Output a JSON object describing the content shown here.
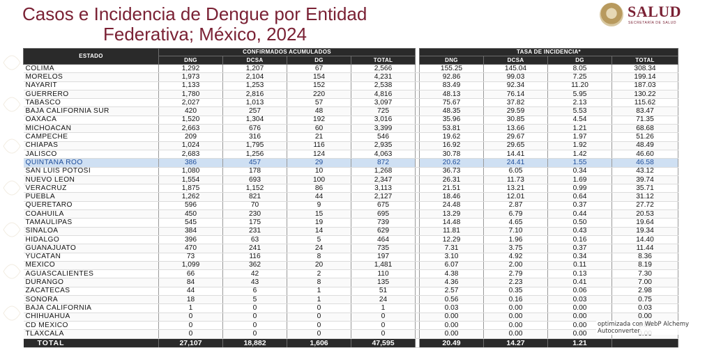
{
  "title_line1": "Casos e Incidencia de Dengue por Entidad",
  "title_line2": "Federativa; México, 2024",
  "logo": {
    "brand": "SALUD",
    "subtitle": "SECRETARÍA DE SALUD",
    "seal_icon": "mexican-coat-of-arms-seal"
  },
  "colors": {
    "title": "#7a2134",
    "header_bg": "#2a2a2a",
    "highlight": "#cfe0f3",
    "highlight_text": "#1f4e9b"
  },
  "table": {
    "estado_header": "ESTADO",
    "group_confirmados": "CONFIRMADOS ACUMULADOS",
    "group_tasa": "TASA DE INCIDENCIA*",
    "columns_confirmados": [
      "DNG",
      "DCSA",
      "DG",
      "TOTAL"
    ],
    "columns_tasa": [
      "DNG",
      "DCSA",
      "DG",
      "TOTAL"
    ],
    "highlighted_state": "QUINTANA ROO",
    "rows": [
      {
        "estado": "COLIMA",
        "c": [
          "1,292",
          "1,207",
          "67",
          "2,566"
        ],
        "t": [
          "155.25",
          "145.04",
          "8.05",
          "308.34"
        ]
      },
      {
        "estado": "MORELOS",
        "c": [
          "1,973",
          "2,104",
          "154",
          "4,231"
        ],
        "t": [
          "92.86",
          "99.03",
          "7.25",
          "199.14"
        ]
      },
      {
        "estado": "NAYARIT",
        "c": [
          "1,133",
          "1,253",
          "152",
          "2,538"
        ],
        "t": [
          "83.49",
          "92.34",
          "11.20",
          "187.03"
        ]
      },
      {
        "estado": "GUERRERO",
        "c": [
          "1,780",
          "2,816",
          "220",
          "4,816"
        ],
        "t": [
          "48.13",
          "76.14",
          "5.95",
          "130.22"
        ]
      },
      {
        "estado": "TABASCO",
        "c": [
          "2,027",
          "1,013",
          "57",
          "3,097"
        ],
        "t": [
          "75.67",
          "37.82",
          "2.13",
          "115.62"
        ]
      },
      {
        "estado": "BAJA CALIFORNIA SUR",
        "c": [
          "420",
          "257",
          "48",
          "725"
        ],
        "t": [
          "48.35",
          "29.59",
          "5.53",
          "83.47"
        ]
      },
      {
        "estado": "OAXACA",
        "c": [
          "1,520",
          "1,304",
          "192",
          "3,016"
        ],
        "t": [
          "35.96",
          "30.85",
          "4.54",
          "71.35"
        ]
      },
      {
        "estado": "MICHOACÁN",
        "c": [
          "2,663",
          "676",
          "60",
          "3,399"
        ],
        "t": [
          "53.81",
          "13.66",
          "1.21",
          "68.68"
        ]
      },
      {
        "estado": "CAMPECHE",
        "c": [
          "209",
          "316",
          "21",
          "546"
        ],
        "t": [
          "19.62",
          "29.67",
          "1.97",
          "51.26"
        ]
      },
      {
        "estado": "CHIAPAS",
        "c": [
          "1,024",
          "1,795",
          "116",
          "2,935"
        ],
        "t": [
          "16.92",
          "29.65",
          "1.92",
          "48.49"
        ]
      },
      {
        "estado": "JALISCO",
        "c": [
          "2,683",
          "1,256",
          "124",
          "4,063"
        ],
        "t": [
          "30.78",
          "14.41",
          "1.42",
          "46.60"
        ]
      },
      {
        "estado": "QUINTANA ROO",
        "c": [
          "386",
          "457",
          "29",
          "872"
        ],
        "t": [
          "20.62",
          "24.41",
          "1.55",
          "46.58"
        ]
      },
      {
        "estado": "SAN LUIS POTOSÍ",
        "c": [
          "1,080",
          "178",
          "10",
          "1,268"
        ],
        "t": [
          "36.73",
          "6.05",
          "0.34",
          "43.12"
        ]
      },
      {
        "estado": "NUEVO LEÓN",
        "c": [
          "1,554",
          "693",
          "100",
          "2,347"
        ],
        "t": [
          "26.31",
          "11.73",
          "1.69",
          "39.74"
        ]
      },
      {
        "estado": "VERACRUZ",
        "c": [
          "1,875",
          "1,152",
          "86",
          "3,113"
        ],
        "t": [
          "21.51",
          "13.21",
          "0.99",
          "35.71"
        ]
      },
      {
        "estado": "PUEBLA",
        "c": [
          "1,262",
          "821",
          "44",
          "2,127"
        ],
        "t": [
          "18.46",
          "12.01",
          "0.64",
          "31.12"
        ]
      },
      {
        "estado": "QUERÉTARO",
        "c": [
          "596",
          "70",
          "9",
          "675"
        ],
        "t": [
          "24.48",
          "2.87",
          "0.37",
          "27.72"
        ]
      },
      {
        "estado": "COAHUILA",
        "c": [
          "450",
          "230",
          "15",
          "695"
        ],
        "t": [
          "13.29",
          "6.79",
          "0.44",
          "20.53"
        ]
      },
      {
        "estado": "TAMAULIPAS",
        "c": [
          "545",
          "175",
          "19",
          "739"
        ],
        "t": [
          "14.48",
          "4.65",
          "0.50",
          "19.64"
        ]
      },
      {
        "estado": "SINALOA",
        "c": [
          "384",
          "231",
          "14",
          "629"
        ],
        "t": [
          "11.81",
          "7.10",
          "0.43",
          "19.34"
        ]
      },
      {
        "estado": "HIDALGO",
        "c": [
          "396",
          "63",
          "5",
          "464"
        ],
        "t": [
          "12.29",
          "1.96",
          "0.16",
          "14.40"
        ]
      },
      {
        "estado": "GUANAJUATO",
        "c": [
          "470",
          "241",
          "24",
          "735"
        ],
        "t": [
          "7.31",
          "3.75",
          "0.37",
          "11.44"
        ]
      },
      {
        "estado": "YUCATÁN",
        "c": [
          "73",
          "116",
          "8",
          "197"
        ],
        "t": [
          "3.10",
          "4.92",
          "0.34",
          "8.36"
        ]
      },
      {
        "estado": "MÉXICO",
        "c": [
          "1,099",
          "362",
          "20",
          "1,481"
        ],
        "t": [
          "6.07",
          "2.00",
          "0.11",
          "8.19"
        ]
      },
      {
        "estado": "AGUASCALIENTES",
        "c": [
          "66",
          "42",
          "2",
          "110"
        ],
        "t": [
          "4.38",
          "2.79",
          "0.13",
          "7.30"
        ]
      },
      {
        "estado": "DURANGO",
        "c": [
          "84",
          "43",
          "8",
          "135"
        ],
        "t": [
          "4.36",
          "2.23",
          "0.41",
          "7.00"
        ]
      },
      {
        "estado": "ZACATECAS",
        "c": [
          "44",
          "6",
          "1",
          "51"
        ],
        "t": [
          "2.57",
          "0.35",
          "0.06",
          "2.98"
        ]
      },
      {
        "estado": "SONORA",
        "c": [
          "18",
          "5",
          "1",
          "24"
        ],
        "t": [
          "0.56",
          "0.16",
          "0.03",
          "0.75"
        ]
      },
      {
        "estado": "BAJA CALIFORNIA",
        "c": [
          "1",
          "0",
          "0",
          "1"
        ],
        "t": [
          "0.03",
          "0.00",
          "0.00",
          "0.03"
        ]
      },
      {
        "estado": "CHIHUAHUA",
        "c": [
          "0",
          "0",
          "0",
          "0"
        ],
        "t": [
          "0.00",
          "0.00",
          "0.00",
          "0.00"
        ]
      },
      {
        "estado": "CD MÉXICO",
        "c": [
          "0",
          "0",
          "0",
          "0"
        ],
        "t": [
          "0.00",
          "0.00",
          "0.00",
          "0.00"
        ]
      },
      {
        "estado": "TLAXCALA",
        "c": [
          "0",
          "0",
          "0",
          "0"
        ],
        "t": [
          "0.00",
          "0.00",
          "0.00",
          "0.00"
        ]
      }
    ],
    "total": {
      "label": "TOTAL",
      "c": [
        "27,107",
        "18,882",
        "1,606",
        "47,595"
      ],
      "t": [
        "20.49",
        "14.27",
        "1.21",
        ""
      ]
    }
  },
  "optimizer_note": "optimizada con WebP Alchemy Autoconverter"
}
